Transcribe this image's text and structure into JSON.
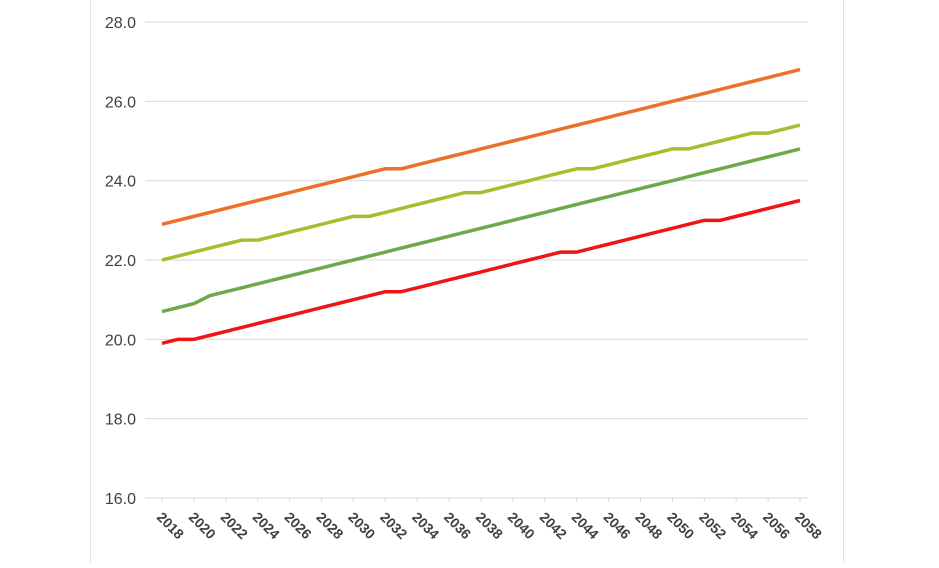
{
  "chart_data": {
    "type": "line",
    "x": [
      2018,
      2019,
      2020,
      2021,
      2022,
      2023,
      2024,
      2025,
      2026,
      2027,
      2028,
      2029,
      2030,
      2031,
      2032,
      2033,
      2034,
      2035,
      2036,
      2037,
      2038,
      2039,
      2040,
      2041,
      2042,
      2043,
      2044,
      2045,
      2046,
      2047,
      2048,
      2049,
      2050,
      2051,
      2052,
      2053,
      2054,
      2055,
      2056,
      2057,
      2058
    ],
    "xlim": [
      2018,
      2058
    ],
    "xticks": [
      2018,
      2020,
      2022,
      2024,
      2026,
      2028,
      2030,
      2032,
      2034,
      2036,
      2038,
      2040,
      2042,
      2044,
      2046,
      2048,
      2050,
      2052,
      2054,
      2056,
      2058
    ],
    "ylim": [
      16,
      28
    ],
    "yticks": [
      {
        "value": 16,
        "label": "16.0"
      },
      {
        "value": 18,
        "label": "18.0"
      },
      {
        "value": 20,
        "label": "20.0"
      },
      {
        "value": 22,
        "label": "22.0"
      },
      {
        "value": 24,
        "label": "24.0"
      },
      {
        "value": 26,
        "label": "26.0"
      },
      {
        "value": 28,
        "label": "28.0"
      }
    ],
    "grid": true,
    "series": [
      {
        "color": "#e9712b",
        "values": [
          22.9,
          23.0,
          23.1,
          23.2,
          23.3,
          23.4,
          23.5,
          23.6,
          23.7,
          23.8,
          23.9,
          24.0,
          24.1,
          24.2,
          24.3,
          24.3,
          24.4,
          24.5,
          24.6,
          24.7,
          24.8,
          24.9,
          25.0,
          25.1,
          25.2,
          25.3,
          25.4,
          25.5,
          25.6,
          25.7,
          25.8,
          25.9,
          26.0,
          26.1,
          26.2,
          26.3,
          26.4,
          26.5,
          26.6,
          26.7,
          26.8
        ]
      },
      {
        "color": "#9fc131",
        "values": [
          22.0,
          22.1,
          22.2,
          22.3,
          22.4,
          22.5,
          22.5,
          22.6,
          22.7,
          22.8,
          22.9,
          23.0,
          23.1,
          23.1,
          23.2,
          23.3,
          23.4,
          23.5,
          23.6,
          23.7,
          23.7,
          23.8,
          23.9,
          24.0,
          24.1,
          24.2,
          24.3,
          24.3,
          24.4,
          24.5,
          24.6,
          24.7,
          24.8,
          24.8,
          24.9,
          25.0,
          25.1,
          25.2,
          25.2,
          25.3,
          25.4
        ]
      },
      {
        "color": "#6ea84a",
        "values": [
          20.7,
          20.8,
          20.9,
          21.1,
          21.2,
          21.3,
          21.4,
          21.5,
          21.6,
          21.7,
          21.8,
          21.9,
          22.0,
          22.1,
          22.2,
          22.3,
          22.4,
          22.5,
          22.6,
          22.7,
          22.8,
          22.9,
          23.0,
          23.1,
          23.2,
          23.3,
          23.4,
          23.5,
          23.6,
          23.7,
          23.8,
          23.9,
          24.0,
          24.1,
          24.2,
          24.3,
          24.4,
          24.5,
          24.6,
          24.7,
          24.8
        ]
      },
      {
        "color": "#f01414",
        "values": [
          19.9,
          20.0,
          20.0,
          20.1,
          20.2,
          20.3,
          20.4,
          20.5,
          20.6,
          20.7,
          20.8,
          20.9,
          21.0,
          21.1,
          21.2,
          21.2,
          21.3,
          21.4,
          21.5,
          21.6,
          21.7,
          21.8,
          21.9,
          22.0,
          22.1,
          22.2,
          22.2,
          22.3,
          22.4,
          22.5,
          22.6,
          22.7,
          22.8,
          22.9,
          23.0,
          23.0,
          23.1,
          23.2,
          23.3,
          23.4,
          23.5
        ]
      }
    ]
  }
}
